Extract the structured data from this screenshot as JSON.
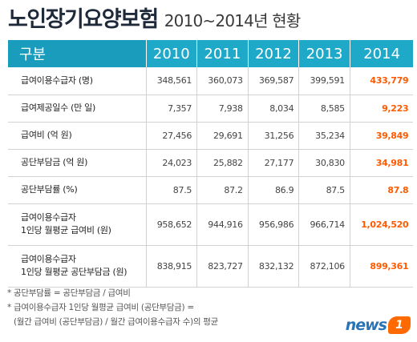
{
  "title": {
    "main": "노인장기요양보험",
    "sub": "2010~2014년 현황"
  },
  "table": {
    "header": {
      "label": "구분",
      "years": [
        "2010",
        "2011",
        "2012",
        "2013",
        "2014"
      ]
    },
    "rows": [
      {
        "label": "급여이용수급자 (명)",
        "values": [
          "348,561",
          "360,073",
          "369,587",
          "399,591",
          "433,779"
        ]
      },
      {
        "label": "급여제공일수 (만 일)",
        "values": [
          "7,357",
          "7,938",
          "8,034",
          "8,585",
          "9,223"
        ]
      },
      {
        "label": "급여비 (억 원)",
        "values": [
          "27,456",
          "29,691",
          "31,256",
          "35,234",
          "39,849"
        ]
      },
      {
        "label": "공단부담금 (억 원)",
        "values": [
          "24,023",
          "25,882",
          "27,177",
          "30,830",
          "34,981"
        ]
      },
      {
        "label": "공단부담률 (%)",
        "values": [
          "87.5",
          "87.2",
          "86.9",
          "87.5",
          "87.8"
        ]
      },
      {
        "label": "급여이용수급자\n1인당 월평균 급여비 (원)",
        "values": [
          "958,652",
          "944,916",
          "956,986",
          "966,714",
          "1,024,520"
        ]
      },
      {
        "label": "급여이용수급자\n1인당 월평균 공단부담금 (원)",
        "values": [
          "838,915",
          "823,727",
          "832,132",
          "872,106",
          "899,361"
        ]
      }
    ]
  },
  "notes": [
    "* 공단부담률 = 공단부담금 / 급여비",
    "* 급여이용수급자 1인당 월평균 급여비 (공단부담금) =",
    "  (월간 급여비 (공단부담금) / 월간 급여이용수급자 수)의 평균"
  ],
  "logo": {
    "text": "news",
    "badge": "1"
  },
  "colors": {
    "header": "#1fa9c9",
    "highlight": "#ff5a00",
    "logo": "#2a73b5"
  }
}
